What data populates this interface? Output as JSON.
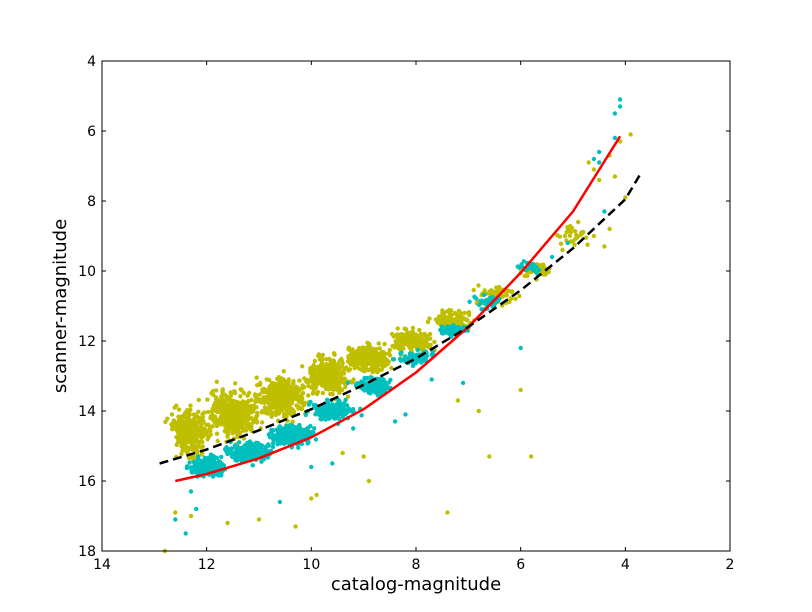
{
  "chart_data": {
    "type": "scatter",
    "title": "",
    "xlabel": "catalog-magnitude",
    "ylabel": "scanner-magnitude",
    "xlim": [
      14,
      2
    ],
    "ylim": [
      18,
      4
    ],
    "x_inverted": true,
    "y_inverted": true,
    "x_ticks": [
      "14",
      "12",
      "10",
      "8",
      "6",
      "4",
      "2"
    ],
    "y_ticks": [
      "4",
      "6",
      "8",
      "10",
      "12",
      "14",
      "16",
      "18"
    ],
    "grid": false,
    "legend": "none",
    "colors": {
      "yellow_points": "#bfbf00",
      "cyan_points": "#00bfbf",
      "red_fit": "#ff0000",
      "dashed_fit": "#000000"
    },
    "series": [
      {
        "kind": "scatter",
        "color": "#bfbf00",
        "cloud": [
          {
            "x": 12.3,
            "y": 14.6,
            "sx": 0.3,
            "sy": 0.5,
            "n": 320
          },
          {
            "x": 11.5,
            "y": 14.1,
            "sx": 0.35,
            "sy": 0.5,
            "n": 420
          },
          {
            "x": 10.6,
            "y": 13.6,
            "sx": 0.35,
            "sy": 0.45,
            "n": 420
          },
          {
            "x": 9.7,
            "y": 13.0,
            "sx": 0.35,
            "sy": 0.4,
            "n": 340
          },
          {
            "x": 8.9,
            "y": 12.5,
            "sx": 0.3,
            "sy": 0.32,
            "n": 240
          },
          {
            "x": 8.1,
            "y": 12.0,
            "sx": 0.3,
            "sy": 0.28,
            "n": 160
          },
          {
            "x": 7.3,
            "y": 11.4,
            "sx": 0.3,
            "sy": 0.22,
            "n": 110
          },
          {
            "x": 6.5,
            "y": 10.7,
            "sx": 0.3,
            "sy": 0.2,
            "n": 70
          },
          {
            "x": 5.7,
            "y": 10.0,
            "sx": 0.25,
            "sy": 0.2,
            "n": 45
          },
          {
            "x": 5.0,
            "y": 9.0,
            "sx": 0.25,
            "sy": 0.25,
            "n": 28
          }
        ],
        "points": [
          [
            12.8,
            18.0
          ],
          [
            12.6,
            16.9
          ],
          [
            12.3,
            17.0
          ],
          [
            11.6,
            17.2
          ],
          [
            11.0,
            17.1
          ],
          [
            10.3,
            17.3
          ],
          [
            10.0,
            16.5
          ],
          [
            9.9,
            16.4
          ],
          [
            9.4,
            15.2
          ],
          [
            9.0,
            15.3
          ],
          [
            8.9,
            16.0
          ],
          [
            7.4,
            16.9
          ],
          [
            6.6,
            15.3
          ],
          [
            6.0,
            13.4
          ],
          [
            6.8,
            14.0
          ],
          [
            7.2,
            13.7
          ],
          [
            5.8,
            15.3
          ],
          [
            5.5,
            10.0
          ],
          [
            5.2,
            9.4
          ],
          [
            4.9,
            8.6
          ],
          [
            4.6,
            9.0
          ],
          [
            4.4,
            9.3
          ],
          [
            4.3,
            8.8
          ],
          [
            4.0,
            7.9
          ],
          [
            4.5,
            7.4
          ],
          [
            4.6,
            7.1
          ],
          [
            4.2,
            7.3
          ],
          [
            4.3,
            6.7
          ],
          [
            4.1,
            6.3
          ],
          [
            3.9,
            6.1
          ],
          [
            4.7,
            6.9
          ]
        ]
      },
      {
        "kind": "scatter",
        "color": "#00bfbf",
        "cloud": [
          {
            "x": 12.0,
            "y": 15.6,
            "sx": 0.25,
            "sy": 0.22,
            "n": 300
          },
          {
            "x": 11.2,
            "y": 15.2,
            "sx": 0.3,
            "sy": 0.22,
            "n": 320
          },
          {
            "x": 10.4,
            "y": 14.7,
            "sx": 0.3,
            "sy": 0.22,
            "n": 300
          },
          {
            "x": 9.6,
            "y": 14.0,
            "sx": 0.3,
            "sy": 0.2,
            "n": 240
          },
          {
            "x": 8.8,
            "y": 13.3,
            "sx": 0.28,
            "sy": 0.18,
            "n": 150
          },
          {
            "x": 8.0,
            "y": 12.5,
            "sx": 0.28,
            "sy": 0.16,
            "n": 90
          },
          {
            "x": 7.3,
            "y": 11.7,
            "sx": 0.25,
            "sy": 0.14,
            "n": 60
          },
          {
            "x": 6.6,
            "y": 10.9,
            "sx": 0.25,
            "sy": 0.14,
            "n": 40
          },
          {
            "x": 5.8,
            "y": 9.9,
            "sx": 0.2,
            "sy": 0.14,
            "n": 25
          }
        ],
        "points": [
          [
            12.6,
            17.1
          ],
          [
            12.4,
            17.5
          ],
          [
            12.3,
            16.3
          ],
          [
            12.2,
            16.8
          ],
          [
            10.6,
            16.6
          ],
          [
            10.0,
            15.6
          ],
          [
            9.6,
            15.5
          ],
          [
            9.2,
            14.5
          ],
          [
            8.4,
            14.3
          ],
          [
            8.2,
            14.1
          ],
          [
            7.7,
            13.1
          ],
          [
            7.1,
            13.2
          ],
          [
            6.0,
            12.2
          ],
          [
            5.4,
            9.6
          ],
          [
            5.1,
            9.2
          ],
          [
            4.4,
            8.3
          ],
          [
            4.5,
            6.9
          ],
          [
            4.5,
            6.6
          ],
          [
            4.6,
            6.8
          ],
          [
            4.2,
            6.2
          ],
          [
            4.1,
            5.3
          ],
          [
            4.1,
            5.1
          ],
          [
            4.2,
            5.5
          ]
        ]
      },
      {
        "kind": "line",
        "style": "solid",
        "color": "#ff0000",
        "x": [
          12.6,
          12.0,
          11.0,
          10.0,
          9.0,
          8.0,
          7.0,
          6.0,
          5.0,
          4.1
        ],
        "y": [
          16.0,
          15.8,
          15.35,
          14.75,
          13.95,
          12.9,
          11.6,
          10.05,
          8.3,
          6.15
        ]
      },
      {
        "kind": "line",
        "style": "dashed",
        "color": "#000000",
        "x": [
          12.9,
          12.0,
          11.0,
          10.0,
          9.0,
          8.0,
          7.0,
          6.0,
          5.0,
          4.0,
          3.7
        ],
        "y": [
          15.5,
          15.1,
          14.55,
          13.95,
          13.25,
          12.5,
          11.6,
          10.55,
          9.35,
          7.95,
          7.2
        ]
      }
    ]
  }
}
